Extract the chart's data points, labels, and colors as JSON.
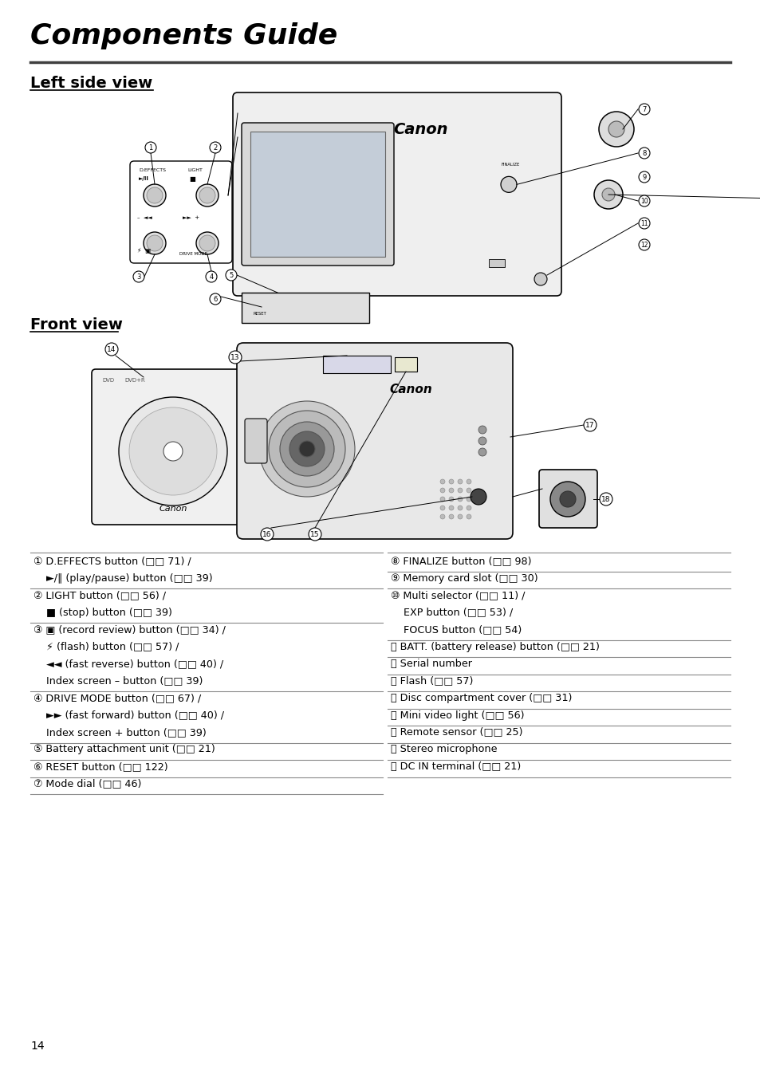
{
  "title": "Components Guide",
  "section1": "Left side view",
  "section2": "Front view",
  "bg_color": "#ffffff",
  "text_color": "#000000",
  "title_fontsize": 26,
  "section_fontsize": 14,
  "label_fontsize": 9.2,
  "page_number": "14",
  "left_rows": [
    {
      "text": "① D.EFFECTS button (□□ 71) /",
      "indent": false,
      "sep_above": true
    },
    {
      "text": "    ►/∥ (play/pause) button (□□ 39)",
      "indent": true,
      "sep_above": false
    },
    {
      "text": "② LIGHT button (□□ 56) /",
      "indent": false,
      "sep_above": true
    },
    {
      "text": "    ■ (stop) button (□□ 39)",
      "indent": true,
      "sep_above": false
    },
    {
      "text": "③ ▣ (record review) button (□□ 34) /",
      "indent": false,
      "sep_above": true
    },
    {
      "text": "    ⚡ (flash) button (□□ 57) /",
      "indent": true,
      "sep_above": false
    },
    {
      "text": "    ◄◄ (fast reverse) button (□□ 40) /",
      "indent": true,
      "sep_above": false
    },
    {
      "text": "    Index screen – button (□□ 39)",
      "indent": true,
      "sep_above": false
    },
    {
      "text": "④ DRIVE MODE button (□□ 67) /",
      "indent": false,
      "sep_above": true
    },
    {
      "text": "    ►► (fast forward) button (□□ 40) /",
      "indent": true,
      "sep_above": false
    },
    {
      "text": "    Index screen + button (□□ 39)",
      "indent": true,
      "sep_above": false
    },
    {
      "text": "⑤ Battery attachment unit (□□ 21)",
      "indent": false,
      "sep_above": true
    },
    {
      "text": "⑥ RESET button (□□ 122)",
      "indent": false,
      "sep_above": true
    },
    {
      "text": "⑦ Mode dial (□□ 46)",
      "indent": false,
      "sep_above": true
    },
    {
      "text": "",
      "indent": false,
      "sep_above": true
    }
  ],
  "right_rows": [
    {
      "text": "⑧ FINALIZE button (□□ 98)",
      "indent": false,
      "sep_above": true
    },
    {
      "text": "⑨ Memory card slot (□□ 30)",
      "indent": false,
      "sep_above": true
    },
    {
      "text": "⑩ Multi selector (□□ 11) /",
      "indent": false,
      "sep_above": true
    },
    {
      "text": "    EXP button (□□ 53) /",
      "indent": true,
      "sep_above": false
    },
    {
      "text": "    FOCUS button (□□ 54)",
      "indent": true,
      "sep_above": false
    },
    {
      "text": "⑪ BATT. (battery release) button (□□ 21)",
      "indent": false,
      "sep_above": true
    },
    {
      "text": "⑫ Serial number",
      "indent": false,
      "sep_above": true
    },
    {
      "text": "⑬ Flash (□□ 57)",
      "indent": false,
      "sep_above": true
    },
    {
      "text": "⑭ Disc compartment cover (□□ 31)",
      "indent": false,
      "sep_above": true
    },
    {
      "text": "⑮ Mini video light (□□ 56)",
      "indent": false,
      "sep_above": true
    },
    {
      "text": "⑯ Remote sensor (□□ 25)",
      "indent": false,
      "sep_above": true
    },
    {
      "text": "⑰ Stereo microphone",
      "indent": false,
      "sep_above": true
    },
    {
      "text": "⑱ DC IN terminal (□□ 21)",
      "indent": false,
      "sep_above": true
    },
    {
      "text": "",
      "indent": false,
      "sep_above": true
    }
  ]
}
